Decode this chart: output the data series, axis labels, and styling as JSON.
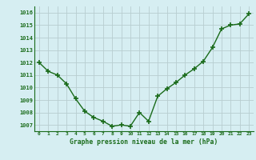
{
  "x": [
    0,
    1,
    2,
    3,
    4,
    5,
    6,
    7,
    8,
    9,
    10,
    11,
    12,
    13,
    14,
    15,
    16,
    17,
    18,
    19,
    20,
    21,
    22,
    23
  ],
  "y": [
    1012.0,
    1011.3,
    1011.0,
    1010.3,
    1009.1,
    1008.1,
    1007.6,
    1007.3,
    1006.9,
    1007.0,
    1006.9,
    1008.0,
    1007.3,
    1009.3,
    1009.9,
    1010.4,
    1011.0,
    1011.5,
    1012.1,
    1013.2,
    1014.7,
    1015.0,
    1015.1,
    1015.9
  ],
  "line_color": "#1a6b1a",
  "marker_color": "#1a6b1a",
  "bg_color": "#d6eef2",
  "grid_color": "#b8cdd0",
  "xlabel": "Graphe pression niveau de la mer (hPa)",
  "xlabel_color": "#1a6b1a",
  "tick_color": "#1a6b1a",
  "ylim": [
    1006.5,
    1016.5
  ],
  "yticks": [
    1007,
    1008,
    1009,
    1010,
    1011,
    1012,
    1013,
    1014,
    1015,
    1016
  ],
  "xticks": [
    0,
    1,
    2,
    3,
    4,
    5,
    6,
    7,
    8,
    9,
    10,
    11,
    12,
    13,
    14,
    15,
    16,
    17,
    18,
    19,
    20,
    21,
    22,
    23
  ],
  "xlim": [
    -0.5,
    23.5
  ]
}
